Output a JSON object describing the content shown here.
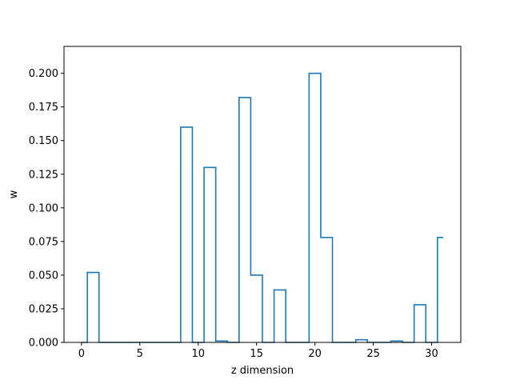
{
  "chart_data": {
    "type": "step",
    "title": "",
    "xlabel": "z dimension",
    "ylabel": "w",
    "xlim": [
      -1.5,
      32.5
    ],
    "ylim": [
      0,
      0.22
    ],
    "grid": false,
    "legend": "none",
    "series": [
      {
        "color": "#1f77b4",
        "x": [
          0,
          1,
          2,
          3,
          4,
          5,
          6,
          7,
          8,
          9,
          10,
          11,
          12,
          13,
          14,
          15,
          16,
          17,
          18,
          19,
          20,
          21,
          22,
          23,
          24,
          25,
          26,
          27,
          28,
          29,
          30,
          31
        ],
        "values": [
          0,
          0.052,
          0,
          0,
          0,
          0,
          0,
          0,
          0,
          0.16,
          0,
          0.13,
          0.001,
          0,
          0.182,
          0.05,
          0,
          0.039,
          0,
          0,
          0.2,
          0.078,
          0,
          0,
          0.002,
          0,
          0,
          0.001,
          0,
          0.028,
          0,
          0.078
        ]
      }
    ],
    "xticks": [
      {
        "value": 0,
        "label": "0"
      },
      {
        "value": 5,
        "label": "5"
      },
      {
        "value": 10,
        "label": "10"
      },
      {
        "value": 15,
        "label": "15"
      },
      {
        "value": 20,
        "label": "20"
      },
      {
        "value": 25,
        "label": "25"
      },
      {
        "value": 30,
        "label": "30"
      }
    ],
    "yticks": [
      {
        "value": 0,
        "label": "0.000"
      },
      {
        "value": 0.025,
        "label": "0.025"
      },
      {
        "value": 0.05,
        "label": "0.050"
      },
      {
        "value": 0.075,
        "label": "0.075"
      },
      {
        "value": 0.1,
        "label": "0.100"
      },
      {
        "value": 0.125,
        "label": "0.125"
      },
      {
        "value": 0.15,
        "label": "0.150"
      },
      {
        "value": 0.175,
        "label": "0.175"
      },
      {
        "value": 0.2,
        "label": "0.200"
      }
    ]
  }
}
